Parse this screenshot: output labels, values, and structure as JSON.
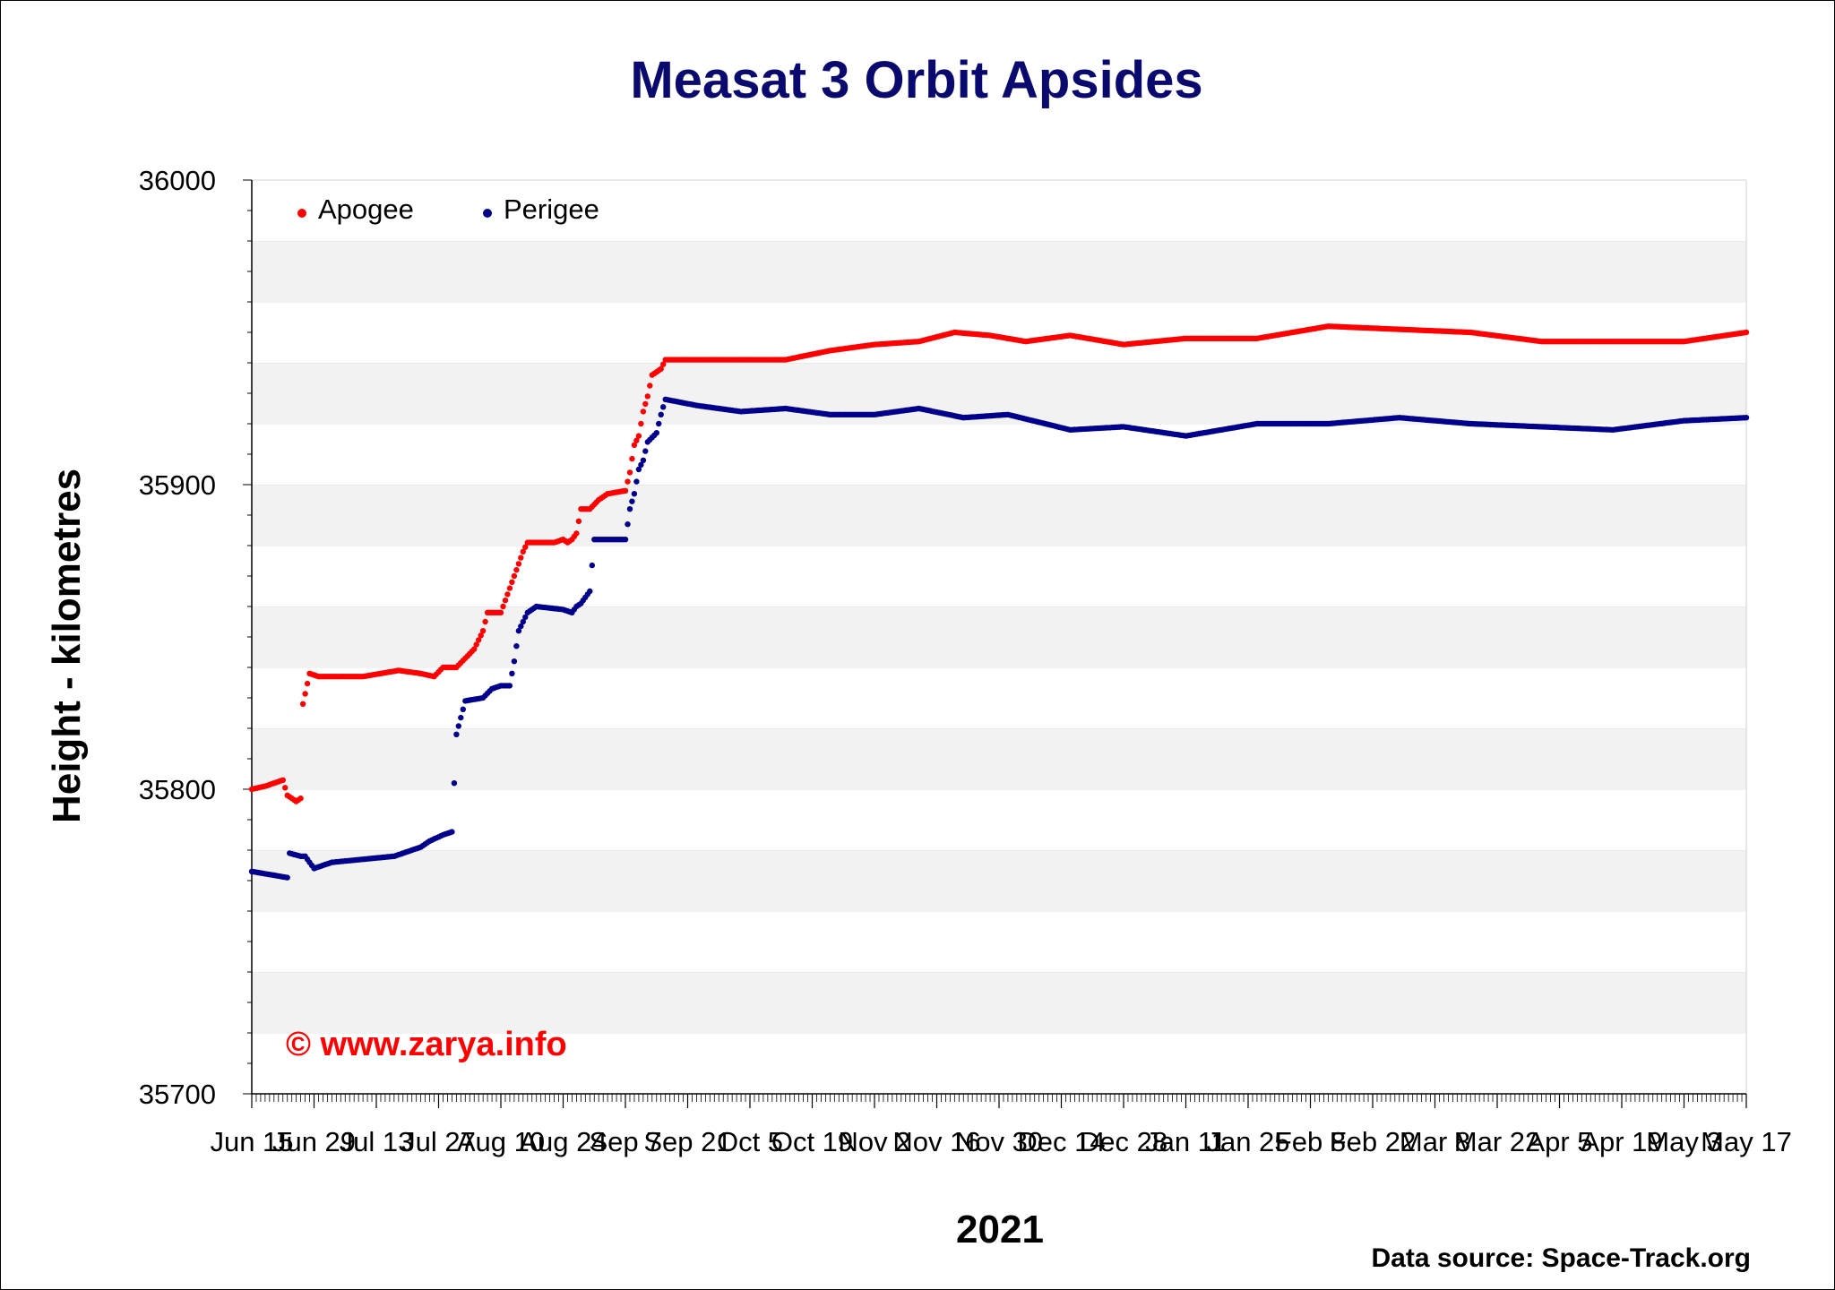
{
  "chart_data": {
    "type": "scatter",
    "title": "Measat 3 Orbit Apsides",
    "xlabel": "2021",
    "ylabel": "Height - kilometres",
    "ylim": [
      35700,
      36000
    ],
    "yticks": [
      35700,
      35800,
      35900,
      36000
    ],
    "xticks": [
      "Jun 15",
      "Jun 29",
      "Jul 13",
      "Jul 27",
      "Aug 10",
      "Aug 24",
      "Sep 7",
      "Sep 21",
      "Oct 5",
      "Oct 19",
      "Nov 2",
      "Nov 16",
      "Nov 30",
      "Dec 14",
      "Dec 28",
      "Jan 11",
      "Jan 25",
      "Feb 8",
      "Feb 22",
      "Mar 8",
      "Mar 22",
      "Apr 5",
      "Apr 19",
      "May 3",
      "May 17"
    ],
    "xlim_days": [
      0,
      336
    ],
    "grid": "horizontal bands",
    "legend_position": "top-left",
    "watermark": "© www.zarya.info",
    "source": "Data source: Space-Track.org",
    "series": [
      {
        "name": "Apogee",
        "color": "#ff0000",
        "breakpoints": [
          [
            0,
            35800
          ],
          [
            3,
            35801
          ],
          [
            7,
            35803
          ],
          [
            8,
            35798
          ],
          [
            10,
            35796
          ],
          [
            11,
            35797
          ],
          [
            11.5,
            35828
          ],
          [
            13,
            35838
          ],
          [
            15,
            35837
          ],
          [
            25,
            35837
          ],
          [
            33,
            35839
          ],
          [
            38,
            35838
          ],
          [
            41,
            35837
          ],
          [
            43,
            35840
          ],
          [
            46,
            35840
          ],
          [
            48,
            35843
          ],
          [
            50,
            35846
          ],
          [
            52,
            35852
          ],
          [
            53,
            35858
          ],
          [
            56,
            35858
          ],
          [
            57,
            35862
          ],
          [
            58,
            35866
          ],
          [
            59,
            35870
          ],
          [
            61,
            35878
          ],
          [
            62,
            35881
          ],
          [
            68,
            35881
          ],
          [
            70,
            35882
          ],
          [
            71,
            35881
          ],
          [
            72,
            35882
          ],
          [
            73,
            35884
          ],
          [
            74,
            35892
          ],
          [
            76,
            35892
          ],
          [
            78,
            35895
          ],
          [
            80,
            35897
          ],
          [
            84,
            35898
          ],
          [
            85,
            35904
          ],
          [
            86,
            35913
          ],
          [
            87,
            35916
          ],
          [
            88,
            35924
          ],
          [
            89,
            35929
          ],
          [
            90,
            35936
          ],
          [
            92,
            35938
          ],
          [
            93,
            35941
          ],
          [
            120,
            35941
          ],
          [
            130,
            35944
          ],
          [
            140,
            35946
          ],
          [
            150,
            35947
          ],
          [
            158,
            35950
          ],
          [
            166,
            35949
          ],
          [
            174,
            35947
          ],
          [
            184,
            35949
          ],
          [
            196,
            35946
          ],
          [
            210,
            35948
          ],
          [
            226,
            35948
          ],
          [
            242,
            35952
          ],
          [
            258,
            35951
          ],
          [
            274,
            35950
          ],
          [
            290,
            35947
          ],
          [
            306,
            35947
          ],
          [
            322,
            35947
          ],
          [
            336,
            35950
          ]
        ]
      },
      {
        "name": "Perigee",
        "color": "#00008b",
        "breakpoints": [
          [
            0,
            35773
          ],
          [
            4,
            35772
          ],
          [
            8,
            35771
          ],
          [
            8.5,
            35779
          ],
          [
            11,
            35778
          ],
          [
            12,
            35778
          ],
          [
            14,
            35774
          ],
          [
            18,
            35776
          ],
          [
            25,
            35777
          ],
          [
            32,
            35778
          ],
          [
            38,
            35781
          ],
          [
            40,
            35783
          ],
          [
            43,
            35785
          ],
          [
            45,
            35786
          ],
          [
            46,
            35818
          ],
          [
            48,
            35829
          ],
          [
            52,
            35830
          ],
          [
            54,
            35833
          ],
          [
            56,
            35834
          ],
          [
            58,
            35834
          ],
          [
            59,
            35842
          ],
          [
            60,
            35852
          ],
          [
            62,
            35858
          ],
          [
            64,
            35860
          ],
          [
            70,
            35859
          ],
          [
            72,
            35858
          ],
          [
            73,
            35860
          ],
          [
            74,
            35861
          ],
          [
            76,
            35865
          ],
          [
            77,
            35882
          ],
          [
            80,
            35882
          ],
          [
            84,
            35882
          ],
          [
            85,
            35892
          ],
          [
            86,
            35897
          ],
          [
            87,
            35905
          ],
          [
            88,
            35908
          ],
          [
            89,
            35914
          ],
          [
            91,
            35917
          ],
          [
            92,
            35923
          ],
          [
            93,
            35928
          ],
          [
            100,
            35926
          ],
          [
            110,
            35924
          ],
          [
            120,
            35925
          ],
          [
            130,
            35923
          ],
          [
            140,
            35923
          ],
          [
            150,
            35925
          ],
          [
            160,
            35922
          ],
          [
            170,
            35923
          ],
          [
            184,
            35918
          ],
          [
            196,
            35919
          ],
          [
            210,
            35916
          ],
          [
            226,
            35920
          ],
          [
            242,
            35920
          ],
          [
            258,
            35922
          ],
          [
            274,
            35920
          ],
          [
            290,
            35919
          ],
          [
            306,
            35918
          ],
          [
            322,
            35921
          ],
          [
            336,
            35922
          ]
        ]
      }
    ]
  }
}
